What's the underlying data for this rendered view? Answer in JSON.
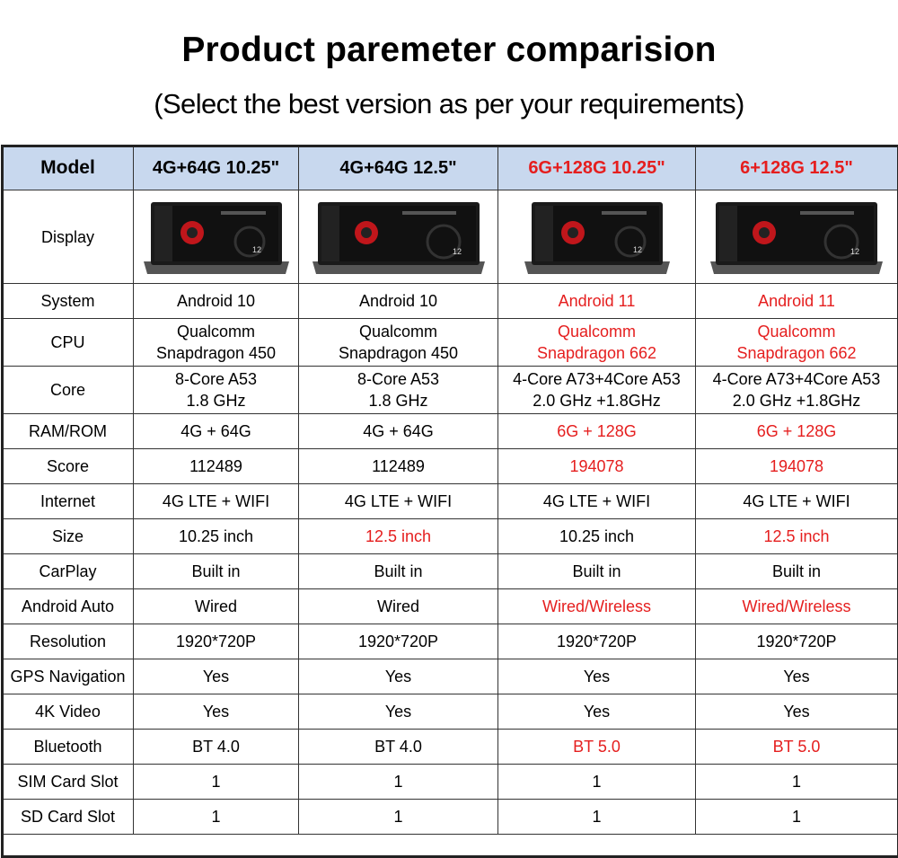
{
  "title": "Product paremeter comparision",
  "subtitle": "(Select the best version as per your requirements)",
  "accent_red": "#e51e1e",
  "header_bg": "#c8d8ee",
  "columns": {
    "label": "Model",
    "c1": "4G+64G  10.25\"",
    "c2": "4G+64G  12.5\"",
    "c3": "6G+128G  10.25\"",
    "c4": "6+128G  12.5\""
  },
  "display_label": "Display",
  "screen_number": "12",
  "rows": [
    {
      "label": "System",
      "c1": "Android 10",
      "c2": "Android 10",
      "c3": "Android 11",
      "c4": "Android 11"
    },
    {
      "label": "CPU",
      "c1a": "Qualcomm",
      "c1b": "Snapdragon 450",
      "c2a": "Qualcomm",
      "c2b": "Snapdragon 450",
      "c3a": "Qualcomm",
      "c3b": "Snapdragon 662",
      "c4a": "Qualcomm",
      "c4b": "Snapdragon 662"
    },
    {
      "label": "Core",
      "c1a": "8-Core A53",
      "c1b": "1.8 GHz",
      "c2a": "8-Core A53",
      "c2b": "1.8 GHz",
      "c3a": "4-Core A73+4Core A53",
      "c3b": "2.0 GHz +1.8GHz",
      "c4a": "4-Core A73+4Core A53",
      "c4b": "2.0 GHz +1.8GHz"
    },
    {
      "label": "RAM/ROM",
      "c1": "4G + 64G",
      "c2": "4G + 64G",
      "c3": "6G + 128G",
      "c4": "6G + 128G"
    },
    {
      "label": "Score",
      "c1": "112489",
      "c2": "112489",
      "c3": "194078",
      "c4": "194078"
    },
    {
      "label": "Internet",
      "c1": "4G LTE + WIFI",
      "c2": "4G LTE + WIFI",
      "c3": "4G LTE + WIFI",
      "c4": "4G LTE + WIFI"
    },
    {
      "label": "Size",
      "c1": "10.25 inch",
      "c2": "12.5 inch",
      "c3": "10.25 inch",
      "c4": "12.5 inch"
    },
    {
      "label": "CarPlay",
      "c1": "Built in",
      "c2": "Built in",
      "c3": "Built in",
      "c4": "Built in"
    },
    {
      "label": "Android Auto",
      "c1": "Wired",
      "c2": "Wired",
      "c3": "Wired/Wireless",
      "c4": "Wired/Wireless"
    },
    {
      "label": "Resolution",
      "c1": "1920*720P",
      "c2": "1920*720P",
      "c3": "1920*720P",
      "c4": "1920*720P"
    },
    {
      "label": "GPS Navigation",
      "c1": "Yes",
      "c2": "Yes",
      "c3": "Yes",
      "c4": "Yes"
    },
    {
      "label": "4K Video",
      "c1": "Yes",
      "c2": "Yes",
      "c3": "Yes",
      "c4": "Yes"
    },
    {
      "label": "Bluetooth",
      "c1": "BT 4.0",
      "c2": "BT 4.0",
      "c3": "BT 5.0",
      "c4": "BT 5.0"
    },
    {
      "label": "SIM Card Slot",
      "c1": "1",
      "c2": "1",
      "c3": "1",
      "c4": "1"
    },
    {
      "label": "SD Card Slot",
      "c1": "1",
      "c2": "1",
      "c3": "1",
      "c4": "1"
    }
  ]
}
